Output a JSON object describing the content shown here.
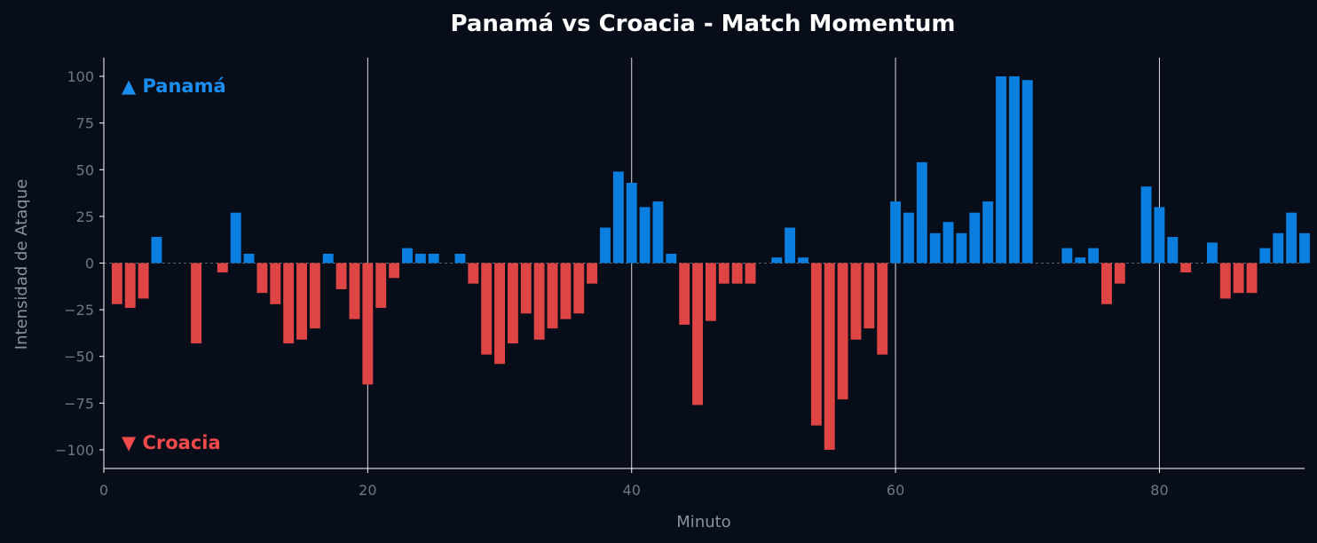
{
  "chart_data": {
    "type": "bar",
    "title": "Panamá vs Croacia - Match Momentum",
    "xlabel": "Minuto",
    "ylabel": "Intensidad de Ataque",
    "xlim": [
      0,
      91
    ],
    "ylim": [
      -110,
      110
    ],
    "x_ticks": [
      0,
      20,
      40,
      60,
      80
    ],
    "y_ticks": [
      100,
      75,
      50,
      25,
      0,
      -25,
      -50,
      -75,
      -100
    ],
    "x_tick_labels": [
      "0",
      "20",
      "40",
      "60",
      "80"
    ],
    "y_tick_labels": [
      "100",
      "75",
      "50",
      "25",
      "0",
      "−25",
      "−50",
      "−75",
      "−100"
    ],
    "vertical_lines": [
      20,
      40,
      60,
      80
    ],
    "grid": false,
    "colors": {
      "positive": "#0a7fe0",
      "negative": "#e04545",
      "background": "#070d19"
    },
    "annotations": [
      {
        "text": "▲ Panamá",
        "color": "#1a8ef0",
        "position": "top-left"
      },
      {
        "text": "▼ Croacia",
        "color": "#f04a4a",
        "position": "bottom-left"
      }
    ],
    "x": [
      1,
      2,
      3,
      4,
      5,
      6,
      7,
      8,
      9,
      10,
      11,
      12,
      13,
      14,
      15,
      16,
      17,
      18,
      19,
      20,
      21,
      22,
      23,
      24,
      25,
      26,
      27,
      28,
      29,
      30,
      31,
      32,
      33,
      34,
      35,
      36,
      37,
      38,
      39,
      40,
      41,
      42,
      43,
      44,
      45,
      46,
      47,
      48,
      49,
      50,
      51,
      52,
      53,
      54,
      55,
      56,
      57,
      58,
      59,
      60,
      61,
      62,
      63,
      64,
      65,
      66,
      67,
      68,
      69,
      70,
      71,
      72,
      73,
      74,
      75,
      76,
      77,
      78,
      79,
      80,
      81,
      82,
      83,
      84,
      85,
      86,
      87,
      88,
      89,
      90,
      91
    ],
    "values": [
      -22,
      -24,
      -19,
      14,
      0,
      0,
      -43,
      0,
      -5,
      27,
      5,
      -16,
      -22,
      -43,
      -41,
      -35,
      5,
      -14,
      -30,
      -65,
      -24,
      -8,
      8,
      5,
      5,
      0,
      5,
      -11,
      -49,
      -54,
      -43,
      -27,
      -41,
      -35,
      -30,
      -27,
      -11,
      19,
      49,
      43,
      30,
      33,
      5,
      -33,
      -76,
      -31,
      -11,
      -11,
      -11,
      0,
      3,
      19,
      3,
      -87,
      -100,
      -73,
      -41,
      -35,
      -49,
      33,
      27,
      54,
      16,
      22,
      16,
      27,
      33,
      100,
      100,
      98,
      0,
      0,
      8,
      3,
      8,
      -22,
      -11,
      0,
      41,
      30,
      14,
      -5,
      0,
      11,
      -19,
      -16,
      -16,
      8,
      16,
      27,
      16
    ]
  }
}
